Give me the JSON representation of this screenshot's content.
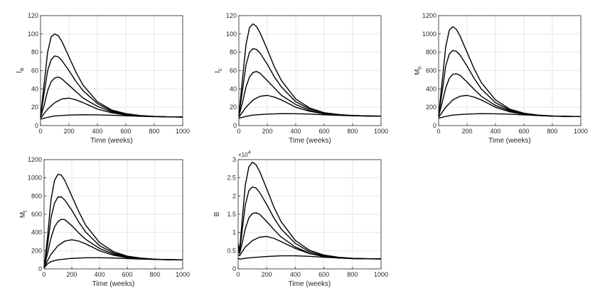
{
  "chart_data": [
    {
      "id": "Ia",
      "type": "line",
      "ylabel": "I",
      "ylabel_sub": "a",
      "xlabel": "Time (weeks)",
      "xlim": [
        0,
        1000
      ],
      "ylim": [
        0,
        120
      ],
      "xticks": [
        0,
        200,
        400,
        600,
        800,
        1000
      ],
      "yticks": [
        0,
        20,
        40,
        60,
        80,
        100,
        120
      ],
      "exponent_label": "",
      "grid": true,
      "series": [
        {
          "x": [
            0,
            25,
            50,
            75,
            100,
            125,
            150,
            200,
            250,
            300,
            400,
            500,
            600,
            700,
            800,
            900,
            1000
          ],
          "values": [
            10,
            45,
            80,
            97,
            100,
            98,
            92,
            75,
            58,
            44,
            26,
            17,
            13,
            11,
            10,
            9.5,
            9.3
          ]
        },
        {
          "x": [
            0,
            25,
            50,
            75,
            100,
            125,
            150,
            200,
            250,
            300,
            400,
            500,
            600,
            700,
            800,
            900,
            1000
          ],
          "values": [
            10,
            35,
            60,
            72,
            76,
            75,
            71,
            60,
            48,
            38,
            24,
            16,
            12.5,
            10.8,
            9.9,
            9.5,
            9.3
          ]
        },
        {
          "x": [
            0,
            25,
            50,
            75,
            100,
            125,
            150,
            200,
            250,
            300,
            400,
            500,
            600,
            700,
            800,
            900,
            1000
          ],
          "values": [
            9,
            22,
            38,
            48,
            52,
            53,
            51,
            44,
            37,
            30,
            21,
            15,
            12,
            10.6,
            9.9,
            9.5,
            9.3
          ]
        },
        {
          "x": [
            0,
            50,
            100,
            150,
            200,
            250,
            300,
            400,
            500,
            600,
            700,
            800,
            900,
            1000
          ],
          "values": [
            8,
            18,
            25,
            29,
            30,
            28,
            25,
            18,
            14,
            11.5,
            10.4,
            9.8,
            9.5,
            9.3
          ]
        },
        {
          "x": [
            0,
            50,
            100,
            200,
            300,
            400,
            500,
            600,
            700,
            800,
            900,
            1000
          ],
          "values": [
            7,
            9,
            10.5,
            11.5,
            11.8,
            11.7,
            11.3,
            10.7,
            10.1,
            9.7,
            9.4,
            9.3
          ]
        }
      ]
    },
    {
      "id": "Ic",
      "type": "line",
      "ylabel": "I",
      "ylabel_sub": "c",
      "xlabel": "Time (weeks)",
      "xlim": [
        0,
        1000
      ],
      "ylim": [
        0,
        120
      ],
      "xticks": [
        0,
        200,
        400,
        600,
        800,
        1000
      ],
      "yticks": [
        0,
        20,
        40,
        60,
        80,
        100,
        120
      ],
      "exponent_label": "",
      "grid": true,
      "series": [
        {
          "x": [
            0,
            25,
            50,
            75,
            100,
            125,
            150,
            200,
            250,
            300,
            400,
            500,
            600,
            700,
            800,
            900,
            1000
          ],
          "values": [
            11,
            50,
            88,
            107,
            111,
            108,
            101,
            83,
            64,
            49,
            29,
            19,
            14,
            12,
            11,
            10.5,
            10.3
          ]
        },
        {
          "x": [
            0,
            25,
            50,
            75,
            100,
            125,
            150,
            200,
            250,
            300,
            400,
            500,
            600,
            700,
            800,
            900,
            1000
          ],
          "values": [
            11,
            38,
            66,
            80,
            84,
            83,
            79,
            67,
            53,
            42,
            26,
            18,
            14,
            12,
            11,
            10.5,
            10.3
          ]
        },
        {
          "x": [
            0,
            25,
            50,
            75,
            100,
            125,
            150,
            200,
            250,
            300,
            400,
            500,
            600,
            700,
            800,
            900,
            1000
          ],
          "values": [
            10,
            25,
            42,
            53,
            58,
            59,
            57,
            49,
            41,
            33,
            23,
            16.5,
            13,
            11.7,
            10.9,
            10.5,
            10.3
          ]
        },
        {
          "x": [
            0,
            50,
            100,
            150,
            200,
            250,
            300,
            400,
            500,
            600,
            700,
            800,
            900,
            1000
          ],
          "values": [
            9,
            20,
            28,
            32,
            33,
            31,
            28,
            20,
            15.5,
            12.8,
            11.5,
            10.8,
            10.4,
            10.3
          ]
        },
        {
          "x": [
            0,
            50,
            100,
            200,
            300,
            400,
            500,
            600,
            700,
            800,
            900,
            1000
          ],
          "values": [
            8,
            10,
            11.5,
            12.5,
            13,
            12.9,
            12.5,
            11.8,
            11.2,
            10.7,
            10.4,
            10.3
          ]
        }
      ]
    },
    {
      "id": "Mn",
      "type": "line",
      "ylabel": "M",
      "ylabel_sub": "n",
      "xlabel": "Time (weeks)",
      "xlim": [
        0,
        1000
      ],
      "ylim": [
        0,
        1200
      ],
      "xticks": [
        0,
        200,
        400,
        600,
        800,
        1000
      ],
      "yticks": [
        0,
        200,
        400,
        600,
        800,
        1000,
        1200
      ],
      "exponent_label": "",
      "grid": true,
      "series": [
        {
          "x": [
            0,
            25,
            50,
            75,
            100,
            125,
            150,
            200,
            250,
            300,
            400,
            500,
            600,
            700,
            800,
            900,
            1000
          ],
          "values": [
            110,
            480,
            860,
            1040,
            1080,
            1050,
            980,
            800,
            620,
            470,
            280,
            180,
            135,
            115,
            105,
            100,
            98
          ]
        },
        {
          "x": [
            0,
            25,
            50,
            75,
            100,
            125,
            150,
            200,
            250,
            300,
            400,
            500,
            600,
            700,
            800,
            900,
            1000
          ],
          "values": [
            105,
            370,
            650,
            780,
            820,
            810,
            770,
            650,
            515,
            400,
            250,
            170,
            130,
            112,
            104,
            100,
            98
          ]
        },
        {
          "x": [
            0,
            25,
            50,
            75,
            100,
            125,
            150,
            200,
            250,
            300,
            400,
            500,
            600,
            700,
            800,
            900,
            1000
          ],
          "values": [
            100,
            250,
            410,
            515,
            560,
            565,
            550,
            475,
            395,
            320,
            220,
            160,
            125,
            110,
            103,
            100,
            98
          ]
        },
        {
          "x": [
            0,
            50,
            100,
            150,
            200,
            250,
            300,
            400,
            500,
            600,
            700,
            800,
            900,
            1000
          ],
          "values": [
            90,
            200,
            280,
            320,
            330,
            310,
            280,
            200,
            150,
            123,
            110,
            103,
            100,
            98
          ]
        },
        {
          "x": [
            0,
            50,
            100,
            200,
            300,
            400,
            500,
            600,
            700,
            800,
            900,
            1000
          ],
          "values": [
            80,
            100,
            115,
            125,
            130,
            128,
            124,
            117,
            110,
            104,
            100,
            98
          ]
        }
      ]
    },
    {
      "id": "Mt",
      "type": "line",
      "ylabel": "M",
      "ylabel_sub": "t",
      "xlabel": "Time (weeks)",
      "xlim": [
        0,
        1000
      ],
      "ylim": [
        0,
        1200
      ],
      "xticks": [
        0,
        200,
        400,
        600,
        800,
        1000
      ],
      "yticks": [
        0,
        200,
        400,
        600,
        800,
        1000,
        1200
      ],
      "exponent_label": "",
      "grid": true,
      "series": [
        {
          "x": [
            0,
            25,
            50,
            75,
            100,
            125,
            150,
            200,
            250,
            300,
            400,
            500,
            600,
            700,
            800,
            900,
            1000
          ],
          "values": [
            10,
            350,
            760,
            970,
            1040,
            1030,
            970,
            800,
            630,
            480,
            290,
            190,
            140,
            118,
            107,
            102,
            100
          ]
        },
        {
          "x": [
            0,
            25,
            50,
            75,
            100,
            125,
            150,
            200,
            250,
            300,
            400,
            500,
            600,
            700,
            800,
            900,
            1000
          ],
          "values": [
            10,
            260,
            560,
            720,
            790,
            790,
            755,
            645,
            515,
            405,
            255,
            175,
            134,
            115,
            106,
            101,
            100
          ]
        },
        {
          "x": [
            0,
            25,
            50,
            75,
            100,
            125,
            150,
            200,
            250,
            300,
            400,
            500,
            600,
            700,
            800,
            900,
            1000
          ],
          "values": [
            10,
            170,
            340,
            460,
            520,
            545,
            540,
            475,
            395,
            325,
            225,
            162,
            128,
            112,
            105,
            101,
            100
          ]
        },
        {
          "x": [
            0,
            25,
            50,
            100,
            150,
            200,
            250,
            300,
            400,
            500,
            600,
            700,
            800,
            900,
            1000
          ],
          "values": [
            10,
            90,
            160,
            255,
            305,
            320,
            305,
            275,
            200,
            150,
            124,
            111,
            105,
            101,
            100
          ]
        },
        {
          "x": [
            0,
            25,
            50,
            100,
            200,
            300,
            400,
            500,
            600,
            700,
            800,
            900,
            1000
          ],
          "values": [
            10,
            55,
            80,
            100,
            115,
            122,
            122,
            119,
            114,
            108,
            104,
            101,
            100
          ]
        }
      ]
    },
    {
      "id": "B",
      "type": "line",
      "ylabel": "B",
      "ylabel_sub": "",
      "xlabel": "Time (weeks)",
      "xlim": [
        0,
        1000
      ],
      "ylim": [
        0,
        30000
      ],
      "xticks": [
        0,
        200,
        400,
        600,
        800,
        1000
      ],
      "yticks": [
        0,
        5000,
        10000,
        15000,
        20000,
        25000,
        30000
      ],
      "ytick_labels": [
        "0",
        "0.5",
        "1",
        "1.5",
        "2",
        "2.5",
        "3"
      ],
      "exponent_label": "×10",
      "exponent_power": "4",
      "grid": true,
      "series": [
        {
          "x": [
            0,
            10,
            25,
            50,
            75,
            100,
            125,
            150,
            200,
            250,
            300,
            400,
            500,
            600,
            700,
            800,
            900,
            1000
          ],
          "values": [
            7000,
            5000,
            12000,
            23000,
            28000,
            29300,
            28600,
            26800,
            22000,
            17000,
            13000,
            7800,
            5100,
            3800,
            3200,
            2900,
            2800,
            2750
          ]
        },
        {
          "x": [
            0,
            10,
            25,
            50,
            75,
            100,
            125,
            150,
            200,
            250,
            300,
            400,
            500,
            600,
            700,
            800,
            900,
            1000
          ],
          "values": [
            6000,
            4500,
            9500,
            17500,
            21500,
            22500,
            22200,
            21000,
            17700,
            14000,
            11000,
            7000,
            4700,
            3600,
            3100,
            2850,
            2780,
            2750
          ]
        },
        {
          "x": [
            0,
            10,
            25,
            50,
            75,
            100,
            125,
            150,
            200,
            250,
            300,
            400,
            500,
            600,
            700,
            800,
            900,
            1000
          ],
          "values": [
            5000,
            4200,
            6500,
            11000,
            14000,
            15200,
            15400,
            15000,
            13000,
            10800,
            8800,
            6000,
            4300,
            3400,
            3000,
            2820,
            2770,
            2750
          ]
        },
        {
          "x": [
            0,
            10,
            25,
            50,
            100,
            150,
            200,
            250,
            300,
            400,
            500,
            600,
            700,
            800,
            900,
            1000
          ],
          "values": [
            4000,
            3600,
            4500,
            6000,
            7800,
            8700,
            8900,
            8400,
            7500,
            5600,
            4200,
            3400,
            3000,
            2830,
            2770,
            2750
          ]
        },
        {
          "x": [
            0,
            10,
            25,
            50,
            100,
            200,
            300,
            400,
            500,
            600,
            700,
            800,
            900,
            1000
          ],
          "values": [
            3000,
            2700,
            2750,
            2900,
            3100,
            3400,
            3600,
            3600,
            3450,
            3200,
            3000,
            2850,
            2780,
            2750
          ]
        }
      ]
    }
  ]
}
